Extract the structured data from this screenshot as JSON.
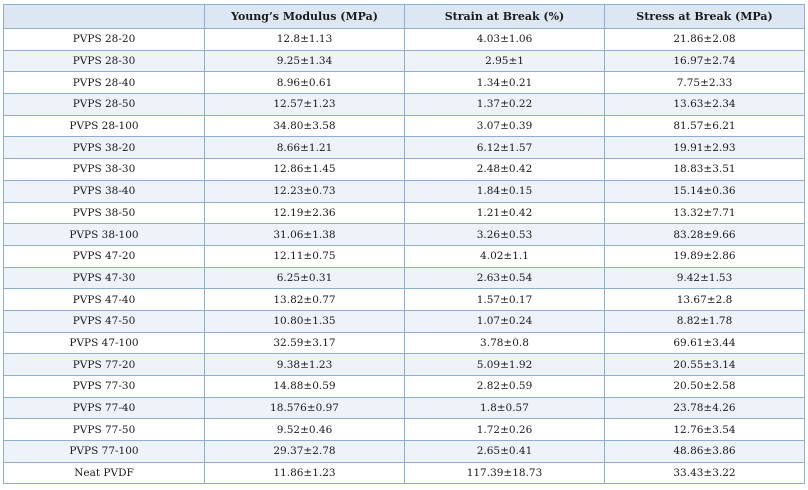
{
  "table": {
    "headers": [
      "",
      "Young’s Modulus (MPa)",
      "Strain at Break (%)",
      "Stress at Break (MPa)"
    ],
    "rows": [
      [
        "PVPS 28-20",
        "12.8±1.13",
        "4.03±1.06",
        "21.86±2.08"
      ],
      [
        "PVPS 28-30",
        "9.25±1.34",
        "2.95±1",
        "16.97±2.74"
      ],
      [
        "PVPS 28-40",
        "8.96±0.61",
        "1.34±0.21",
        "7.75±2.33"
      ],
      [
        "PVPS 28-50",
        "12.57±1.23",
        "1.37±0.22",
        "13.63±2.34"
      ],
      [
        "PVPS 28-100",
        "34.80±3.58",
        "3.07±0.39",
        "81.57±6.21"
      ],
      [
        "PVPS 38-20",
        "8.66±1.21",
        "6.12±1.57",
        "19.91±2.93"
      ],
      [
        "PVPS 38-30",
        "12.86±1.45",
        "2.48±0.42",
        "18.83±3.51"
      ],
      [
        "PVPS 38-40",
        "12.23±0.73",
        "1.84±0.15",
        "15.14±0.36"
      ],
      [
        "PVPS 38-50",
        "12.19±2.36",
        "1.21±0.42",
        "13.32±7.71"
      ],
      [
        "PVPS 38-100",
        "31.06±1.38",
        "3.26±0.53",
        "83.28±9.66"
      ],
      [
        "PVPS 47-20",
        "12.11±0.75",
        "4.02±1.1",
        "19.89±2.86"
      ],
      [
        "PVPS 47-30",
        "6.25±0.31",
        "2.63±0.54",
        "9.42±1.53"
      ],
      [
        "PVPS 47-40",
        "13.82±0.77",
        "1.57±0.17",
        "13.67±2.8"
      ],
      [
        "PVPS 47-50",
        "10.80±1.35",
        "1.07±0.24",
        "8.82±1.78"
      ],
      [
        "PVPS 47-100",
        "32.59±3.17",
        "3.78±0.8",
        "69.61±3.44"
      ],
      [
        "PVPS 77-20",
        "9.38±1.23",
        "5.09±1.92",
        "20.55±3.14"
      ],
      [
        "PVPS 77-30",
        "14.88±0.59",
        "2.82±0.59",
        "20.50±2.58"
      ],
      [
        "PVPS 77-40",
        "18.576±0.97",
        "1.8±0.57",
        "23.78±4.26"
      ],
      [
        "PVPS 77-50",
        "9.52±0.46",
        "1.72±0.26",
        "12.76±3.54"
      ],
      [
        "PVPS 77-100",
        "29.37±2.78",
        "2.65±0.41",
        "48.86±3.86"
      ],
      [
        "Neat PVDF",
        "11.86±1.23",
        "117.39±18.73",
        "33.43±3.22"
      ]
    ]
  }
}
